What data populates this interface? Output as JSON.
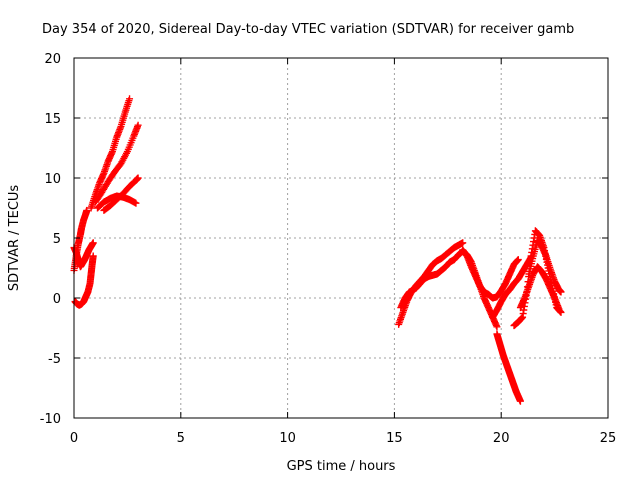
{
  "chart_data": {
    "type": "scatter",
    "title": "Day 354 of 2020, Sidereal Day-to-day VTEC variation (SDTVAR) for receiver gamb",
    "xlabel": "GPS time / hours",
    "ylabel": "SDTVAR / TECUs",
    "xlim": [
      0,
      25
    ],
    "ylim": [
      -10,
      20
    ],
    "x_ticks": [
      "0",
      "5",
      "10",
      "15",
      "20",
      "25"
    ],
    "y_ticks": [
      "-10",
      "-5",
      "0",
      "5",
      "10",
      "15",
      "20"
    ],
    "grid": true,
    "marker": "plus",
    "color": "#ff0000",
    "series": [
      {
        "x": [
          0.0,
          0.1,
          0.2,
          0.3,
          0.35,
          0.45,
          0.55,
          0.6
        ],
        "y": [
          2.3,
          3.5,
          4.5,
          5.3,
          5.8,
          6.5,
          7.0,
          7.3
        ]
      },
      {
        "x": [
          0.0,
          0.1,
          0.2,
          0.3,
          0.4,
          0.5,
          0.6,
          0.7,
          0.8,
          0.9
        ],
        "y": [
          4.2,
          3.8,
          3.2,
          2.6,
          2.9,
          3.2,
          3.6,
          4.0,
          4.3,
          4.6
        ]
      },
      {
        "x": [
          0.05,
          0.15,
          0.25,
          0.35,
          0.45,
          0.55,
          0.65,
          0.75,
          0.8,
          0.85,
          0.9
        ],
        "y": [
          -0.3,
          -0.5,
          -0.6,
          -0.5,
          -0.3,
          0.1,
          0.5,
          1.2,
          2.0,
          2.8,
          3.5
        ]
      },
      {
        "x": [
          0.8,
          1.0,
          1.2,
          1.4,
          1.6,
          1.8,
          2.0,
          2.2,
          2.4,
          2.6
        ],
        "y": [
          7.5,
          8.6,
          9.6,
          10.4,
          11.4,
          12.2,
          13.4,
          14.3,
          15.5,
          16.6
        ]
      },
      {
        "x": [
          1.0,
          1.3,
          1.6,
          1.9,
          2.2,
          2.5,
          2.8,
          3.0
        ],
        "y": [
          8.0,
          8.8,
          9.7,
          10.5,
          11.2,
          12.2,
          13.5,
          14.4
        ]
      },
      {
        "x": [
          1.1,
          1.4,
          1.7,
          2.0,
          2.3,
          2.6,
          2.9
        ],
        "y": [
          7.5,
          8.0,
          8.3,
          8.5,
          8.4,
          8.2,
          7.9
        ]
      },
      {
        "x": [
          1.4,
          1.7,
          2.0,
          2.3,
          2.6,
          2.9,
          3.0
        ],
        "y": [
          7.3,
          7.7,
          8.2,
          8.7,
          9.3,
          9.8,
          10.0
        ]
      },
      {
        "x": [
          15.2,
          15.4,
          15.6,
          15.8,
          16.0,
          16.2,
          16.4,
          16.6,
          16.8,
          17.0,
          17.2,
          17.4,
          17.6,
          17.8,
          18.0,
          18.2
        ],
        "y": [
          -2.2,
          -1.2,
          -0.2,
          0.5,
          1.0,
          1.4,
          1.8,
          2.3,
          2.8,
          3.1,
          3.3,
          3.6,
          3.9,
          4.2,
          4.4,
          4.6
        ]
      },
      {
        "x": [
          15.3,
          15.5,
          15.7,
          16.0,
          16.2,
          16.4,
          16.6,
          16.8,
          17.0,
          17.2,
          17.4,
          17.6,
          17.8,
          18.0,
          18.2,
          18.4,
          18.6,
          18.8,
          19.0,
          19.2,
          19.4,
          19.6,
          19.8
        ],
        "y": [
          -0.8,
          0.0,
          0.5,
          0.8,
          1.2,
          1.6,
          1.8,
          1.9,
          2.0,
          2.3,
          2.6,
          3.0,
          3.2,
          3.6,
          3.9,
          3.6,
          3.0,
          2.0,
          1.0,
          0.0,
          -0.8,
          -1.6,
          -2.4
        ]
      },
      {
        "x": [
          18.2,
          18.4,
          18.6,
          18.8,
          19.0,
          19.2,
          19.4,
          19.6,
          19.8,
          20.0,
          20.2,
          20.4,
          20.6,
          20.8
        ],
        "y": [
          4.0,
          3.5,
          2.6,
          1.8,
          1.0,
          0.5,
          0.3,
          0.0,
          0.1,
          0.6,
          1.2,
          2.0,
          2.8,
          3.2
        ]
      },
      {
        "x": [
          19.8,
          19.9,
          20.0,
          20.1,
          20.2,
          20.3,
          20.4,
          20.5,
          20.6,
          20.7,
          20.8,
          20.9
        ],
        "y": [
          -3.0,
          -3.6,
          -4.2,
          -4.8,
          -5.3,
          -5.8,
          -6.3,
          -6.8,
          -7.3,
          -7.8,
          -8.2,
          -8.6
        ]
      },
      {
        "x": [
          19.6,
          19.8,
          20.0,
          20.2,
          20.4,
          20.6,
          20.8,
          21.0,
          21.2,
          21.4
        ],
        "y": [
          -1.6,
          -1.0,
          -0.3,
          0.3,
          0.7,
          1.2,
          1.6,
          2.2,
          2.8,
          3.4
        ]
      },
      {
        "x": [
          20.6,
          20.8,
          21.0,
          21.2,
          21.4,
          21.6,
          21.8,
          22.0,
          22.2,
          22.4,
          22.6,
          22.8
        ],
        "y": [
          -2.3,
          -2.0,
          -1.6,
          0.5,
          3.5,
          5.6,
          5.2,
          4.2,
          2.5,
          0.8,
          -0.8,
          -1.2
        ]
      },
      {
        "x": [
          21.3,
          21.5,
          21.7,
          21.9,
          22.1,
          22.3,
          22.5,
          22.7,
          22.8
        ],
        "y": [
          2.0,
          3.5,
          4.8,
          4.3,
          3.5,
          2.4,
          1.4,
          0.7,
          0.5
        ]
      },
      {
        "x": [
          20.9,
          21.1,
          21.3,
          21.5,
          21.7,
          21.9,
          22.1,
          22.3,
          22.5,
          22.7
        ],
        "y": [
          -0.8,
          0.0,
          1.0,
          2.0,
          2.6,
          2.2,
          1.6,
          0.8,
          0.0,
          -0.9
        ]
      }
    ]
  }
}
